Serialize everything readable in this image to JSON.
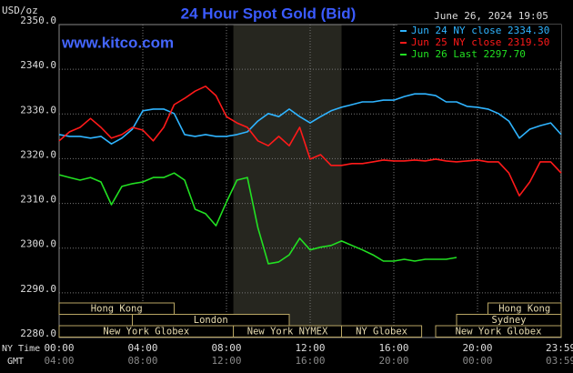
{
  "chart_data": {
    "type": "line",
    "title": "24 Hour Spot Gold (Bid)",
    "subtitle": "June 26, 2024 19:05",
    "watermark": "www.kitco.com",
    "y_label": "USD/oz",
    "x_label": "NY Time",
    "x2_label": "GMT",
    "x": [
      0,
      0.5,
      1,
      1.5,
      2,
      2.5,
      3,
      3.5,
      4,
      4.5,
      5,
      5.5,
      6,
      6.5,
      7,
      7.5,
      8,
      8.5,
      9,
      9.5,
      10,
      10.5,
      11,
      11.5,
      12,
      12.5,
      13,
      13.5,
      14,
      14.5,
      15,
      15.5,
      16,
      16.5,
      17,
      17.5,
      18,
      18.5,
      19,
      19.5,
      20,
      20.5,
      21,
      21.5,
      22,
      22.5,
      23,
      23.5,
      24
    ],
    "xlim": [
      0,
      24
    ],
    "xticks": [
      {
        "value": 0,
        "label": "00:00"
      },
      {
        "value": 4,
        "label": "04:00"
      },
      {
        "value": 8,
        "label": "08:00"
      },
      {
        "value": 12,
        "label": "12:00"
      },
      {
        "value": 16,
        "label": "16:00"
      },
      {
        "value": 20,
        "label": "20:00"
      },
      {
        "value": 23.983,
        "label": "23:59"
      }
    ],
    "x2ticks": [
      {
        "value": 0,
        "label": "04:00"
      },
      {
        "value": 4,
        "label": "08:00"
      },
      {
        "value": 8,
        "label": "12:00"
      },
      {
        "value": 12,
        "label": "16:00"
      },
      {
        "value": 16,
        "label": "20:00"
      },
      {
        "value": 20,
        "label": "00:00"
      },
      {
        "value": 23.983,
        "label": "03:59"
      }
    ],
    "ylim": [
      2280,
      2350
    ],
    "yticks": [
      {
        "value": 2280,
        "label": "2280.0"
      },
      {
        "value": 2290,
        "label": "2290.0"
      },
      {
        "value": 2300,
        "label": "2300.0"
      },
      {
        "value": 2310,
        "label": "2310.0"
      },
      {
        "value": 2320,
        "label": "2320.0"
      },
      {
        "value": 2330,
        "label": "2330.0"
      },
      {
        "value": 2340,
        "label": "2340.0"
      },
      {
        "value": 2350,
        "label": "2350.0"
      }
    ],
    "grid": true,
    "legend": "upper right",
    "series": [
      {
        "name": "Jun 24 NY close 2334.30",
        "color": "#2fb4ff",
        "values": [
          2325.4,
          2325.0,
          2325.0,
          2324.6,
          2325.0,
          2323.3,
          2324.6,
          2326.6,
          2330.7,
          2331.1,
          2331.1,
          2330.1,
          2325.4,
          2325.0,
          2325.4,
          2325.0,
          2325.0,
          2325.4,
          2326.0,
          2328.4,
          2330.1,
          2329.4,
          2331.1,
          2329.4,
          2328.0,
          2329.4,
          2330.7,
          2331.5,
          2332.1,
          2332.7,
          2332.7,
          2333.1,
          2333.1,
          2333.9,
          2334.5,
          2334.5,
          2334.1,
          2332.7,
          2332.7,
          2331.7,
          2331.5,
          2331.1,
          2330.1,
          2328.4,
          2324.6,
          2326.6,
          2327.4,
          2328.0,
          2325.4
        ]
      },
      {
        "name": "Jun 25 NY close 2319.50",
        "color": "#ff1a1a",
        "values": [
          2324.0,
          2326.0,
          2327.0,
          2329.0,
          2327.0,
          2324.6,
          2325.4,
          2327.0,
          2326.4,
          2324.0,
          2327.0,
          2332.1,
          2333.5,
          2335.1,
          2336.2,
          2334.1,
          2329.4,
          2328.0,
          2327.0,
          2324.0,
          2322.9,
          2325.0,
          2322.9,
          2327.0,
          2319.9,
          2320.9,
          2318.5,
          2318.5,
          2318.9,
          2318.9,
          2319.3,
          2319.7,
          2319.5,
          2319.5,
          2319.7,
          2319.5,
          2319.9,
          2319.5,
          2319.3,
          2319.5,
          2319.7,
          2319.3,
          2319.3,
          2316.8,
          2311.7,
          2314.8,
          2319.3,
          2319.3,
          2316.8
        ]
      },
      {
        "name": "Jun 26 Last 2297.70",
        "color": "#22e022",
        "values": [
          2316.4,
          2315.8,
          2315.2,
          2315.8,
          2314.8,
          2309.7,
          2313.8,
          2314.4,
          2314.8,
          2315.8,
          2315.8,
          2316.8,
          2315.2,
          2308.7,
          2307.7,
          2305.0,
          2310.3,
          2315.2,
          2315.8,
          2304.6,
          2296.5,
          2296.9,
          2298.5,
          2302.2,
          2299.6,
          2300.2,
          2300.6,
          2301.6,
          2300.6,
          2299.6,
          2298.5,
          2297.1,
          2297.1,
          2297.5,
          2297.1,
          2297.5,
          2297.5,
          2297.5,
          2297.9,
          null,
          null,
          null,
          null,
          null,
          null,
          null,
          null,
          null,
          null
        ]
      }
    ],
    "sessions": [
      [
        {
          "label": "Hong Kong",
          "start": 0,
          "end": 5.5
        },
        {
          "label": "Hong Kong",
          "start": 20.5,
          "end": 24
        }
      ],
      [
        {
          "label": "London",
          "start": 3.5,
          "end": 11
        },
        {
          "label": "Sydney",
          "start": 19,
          "end": 24
        }
      ],
      [
        {
          "label": "New York Globex",
          "start": 0,
          "end": 8.33
        },
        {
          "label": "New York NYMEX",
          "start": 8.33,
          "end": 13.5
        },
        {
          "label": "NY Globex",
          "start": 13.5,
          "end": 17.33
        },
        {
          "label": "New York Globex",
          "start": 18,
          "end": 24
        }
      ]
    ]
  }
}
